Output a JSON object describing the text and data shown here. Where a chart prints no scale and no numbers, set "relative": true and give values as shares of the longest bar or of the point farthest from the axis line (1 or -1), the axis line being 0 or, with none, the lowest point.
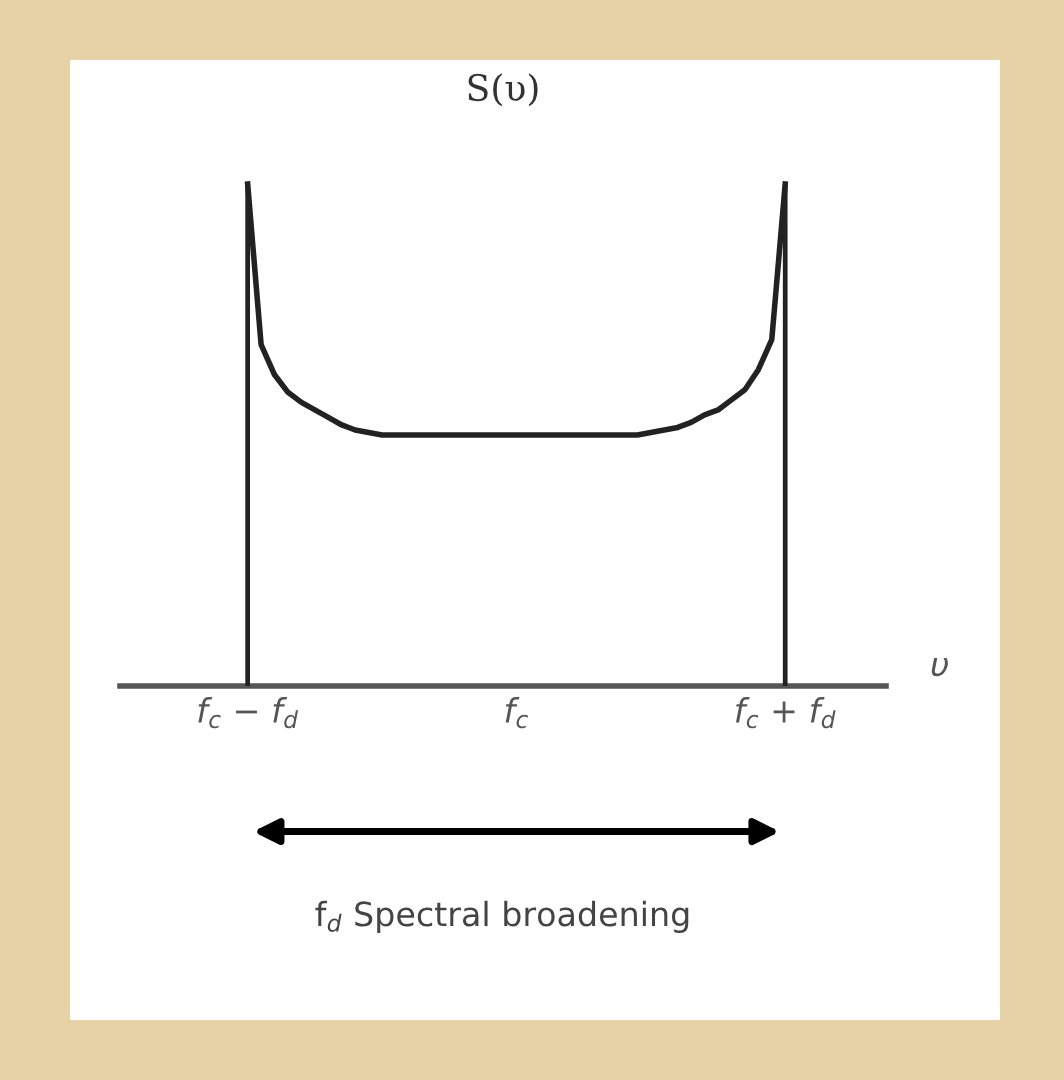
{
  "chart_data": {
    "type": "line",
    "title": "S(υ)",
    "xlabel": "υ",
    "relative": true,
    "grid": false,
    "marker": "none",
    "line_style": "solid",
    "categories": [
      null,
      null,
      null,
      null,
      null,
      null,
      null,
      null,
      null,
      "f$_{c}$ − f$_{d}$",
      null,
      null,
      null,
      null,
      null,
      null,
      null,
      null,
      null,
      null,
      null,
      null,
      null,
      null,
      null,
      null,
      null,
      null,
      null,
      "f$_{c}$",
      null,
      null,
      null,
      null,
      null,
      null,
      null,
      null,
      null,
      null,
      null,
      null,
      null,
      null,
      null,
      null,
      null,
      null,
      null,
      "f$_{c}$ + f$_{d}$",
      null,
      null,
      null,
      null,
      null,
      null,
      null
    ],
    "tick_labels": "x",
    "series": [
      {
        "type": "bar",
        "color": "#222222",
        "values": [
          null,
          null,
          null,
          null,
          null,
          null,
          null,
          null,
          null,
          1,
          null,
          null,
          null,
          null,
          null,
          null,
          null,
          null,
          null,
          null,
          null,
          null,
          null,
          null,
          null,
          null,
          null,
          null,
          null,
          null,
          null,
          null,
          null,
          null,
          null,
          null,
          null,
          null,
          null,
          null,
          null,
          null,
          null,
          null,
          null,
          null,
          null,
          null,
          null,
          1,
          null,
          null,
          null,
          null,
          null,
          null,
          null
        ]
      },
      {
        "color": "#222222",
        "values": [
          null,
          null,
          null,
          null,
          null,
          null,
          null,
          null,
          null,
          1,
          0.68,
          0.62,
          0.585,
          0.565,
          0.55,
          0.535,
          0.52,
          0.51,
          0.505,
          0.5,
          0.5,
          0.5,
          0.5,
          0.5,
          0.5,
          0.5,
          0.5,
          0.5,
          0.5,
          0.5,
          0.5,
          0.5,
          0.5,
          0.5,
          0.5,
          0.5,
          0.5,
          0.5,
          0.5,
          0.505,
          0.51,
          0.515,
          0.525,
          0.54,
          0.55,
          0.57,
          0.59,
          0.63,
          0.69,
          1,
          null,
          null,
          null,
          null,
          null,
          null,
          null
        ]
      }
    ],
    "annotations": [
      "f$_{d}$ Spectral broadening"
    ]
  }
}
